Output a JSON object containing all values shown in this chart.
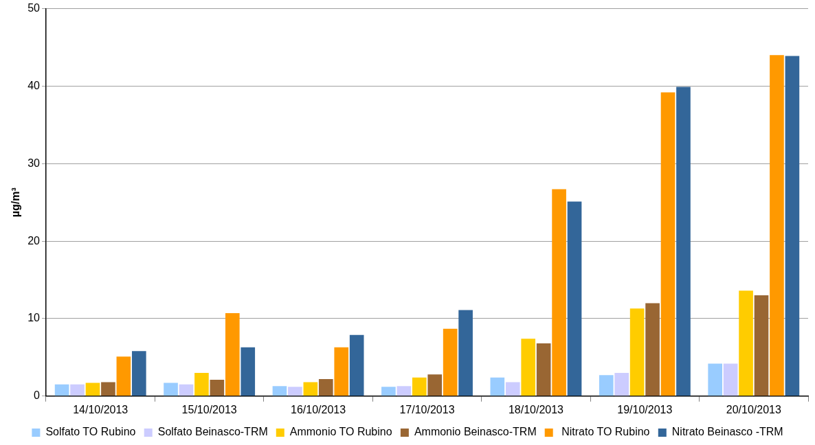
{
  "chart_data": {
    "type": "bar",
    "ylabel": "µg/m³",
    "categories": [
      "14/10/2013",
      "15/10/2013",
      "16/10/2013",
      "17/10/2013",
      "18/10/2013",
      "19/10/2013",
      "20/10/2013"
    ],
    "series": [
      {
        "name": "Solfato TO Rubino",
        "color": "#99ccff",
        "values": [
          1.5,
          1.7,
          1.3,
          1.2,
          2.4,
          2.7,
          4.2
        ]
      },
      {
        "name": "Solfato Beinasco-TRM",
        "color": "#ccccff",
        "values": [
          1.5,
          1.5,
          1.2,
          1.3,
          1.8,
          3.0,
          4.2
        ]
      },
      {
        "name": "Ammonio TO Rubino",
        "color": "#ffcc00",
        "values": [
          1.7,
          3.0,
          1.8,
          2.4,
          7.4,
          11.3,
          13.6
        ]
      },
      {
        "name": "Ammonio Beinasco-TRM",
        "color": "#996633",
        "values": [
          1.8,
          2.1,
          2.2,
          2.8,
          6.8,
          12.0,
          13.0
        ]
      },
      {
        "name": " Nitrato TO Rubino",
        "color": "#ff9900",
        "values": [
          5.1,
          10.7,
          6.3,
          8.7,
          26.7,
          39.2,
          44.0
        ]
      },
      {
        "name": "Nitrato Beinasco -TRM",
        "color": "#336699",
        "values": [
          5.8,
          6.3,
          7.9,
          11.1,
          25.1,
          39.9,
          43.9
        ]
      }
    ],
    "ylim": [
      0,
      50
    ],
    "yticks": [
      0,
      10,
      20,
      30,
      40,
      50
    ],
    "grid": "y",
    "legend": "bottom"
  }
}
